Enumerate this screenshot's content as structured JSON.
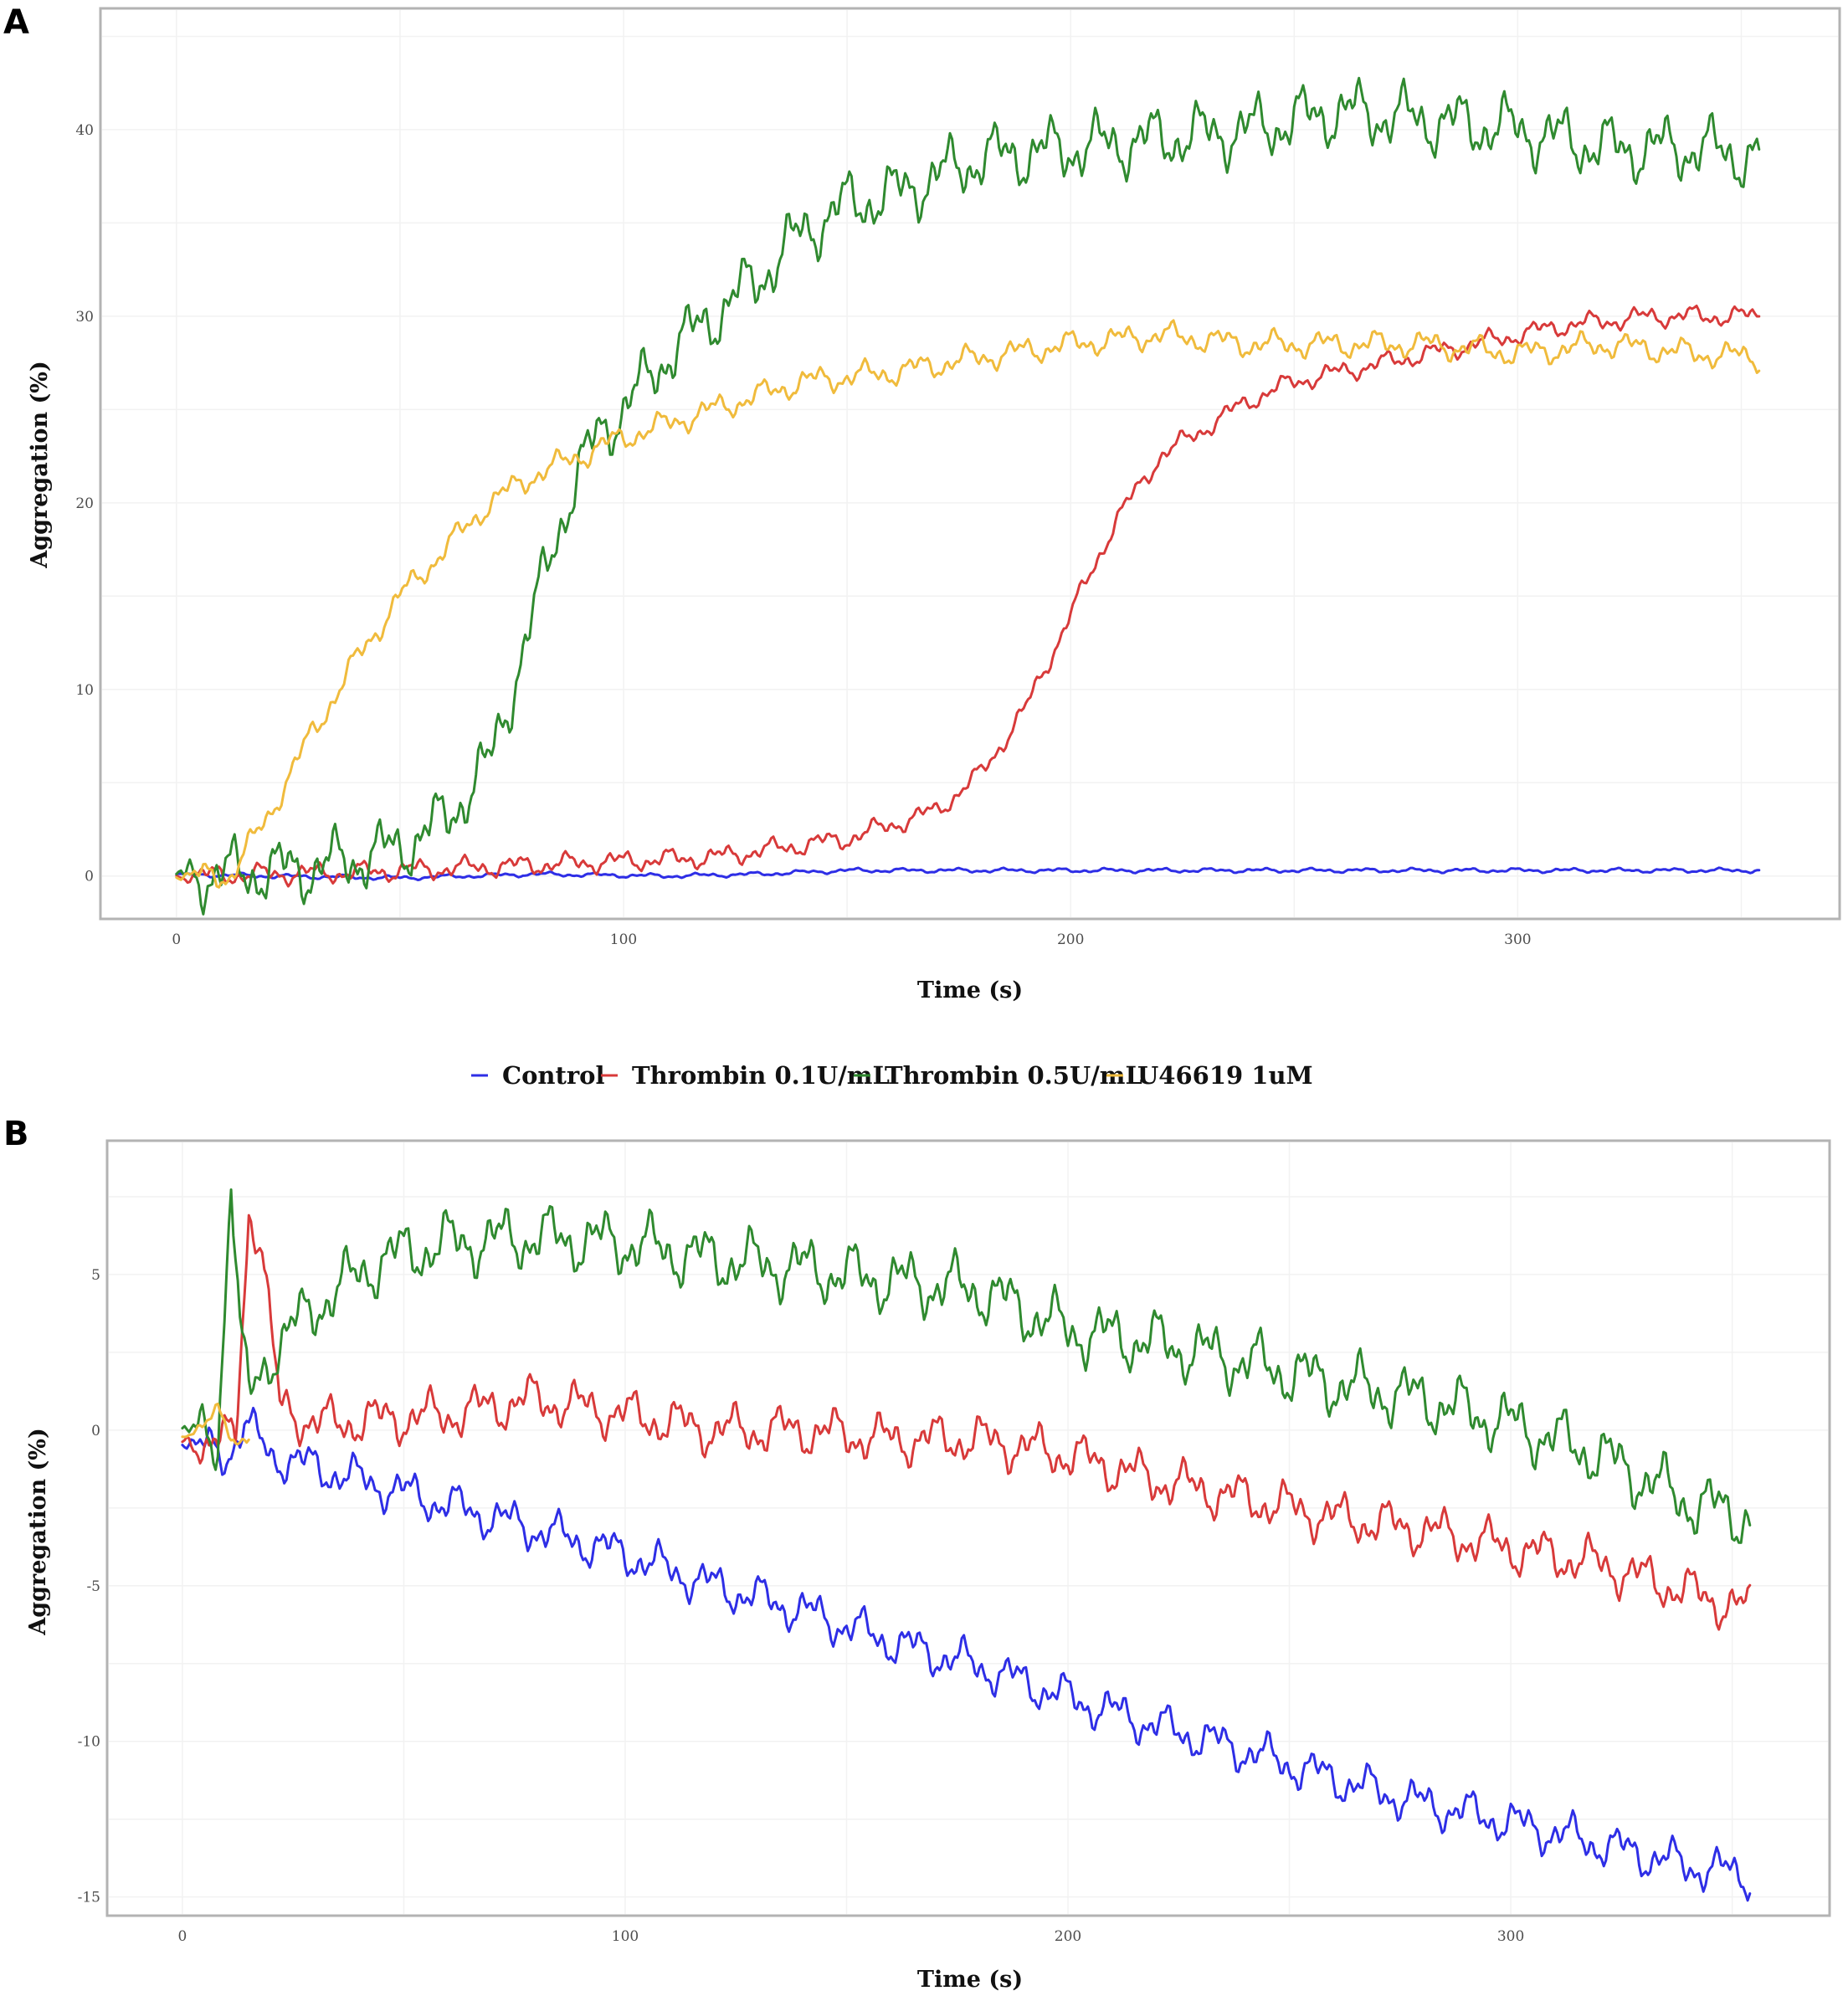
{
  "legend": {
    "entries": [
      {
        "label": "Control",
        "color": "#2e2ee6"
      },
      {
        "label": "Thrombin 0.1U/mL",
        "color": "#d83a3a"
      },
      {
        "label": "Thrombin 0.5U/mL",
        "color": "#2f8a2f"
      },
      {
        "label": "U46619 1uM",
        "color": "#f0bb3c"
      }
    ]
  },
  "chart_data": [
    {
      "panel": "A",
      "type": "line",
      "title": "",
      "xlabel": "Time (s)",
      "ylabel": "Aggregation (%)",
      "xlim": [
        -17,
        372
      ],
      "ylim": [
        -2.3,
        46.5
      ],
      "xticks": [
        0,
        100,
        200,
        300
      ],
      "xtick_labels": [
        "0",
        "100",
        "200",
        "300"
      ],
      "yticks": [
        0,
        10,
        20,
        30,
        40
      ],
      "ytick_labels": [
        "0",
        "10",
        "20",
        "30",
        "40"
      ],
      "grid": true,
      "series": [
        {
          "name": "Control",
          "color": "#2e2ee6",
          "noise": 0.15,
          "x": [
            0,
            20,
            50,
            80,
            110,
            130,
            150,
            200,
            250,
            300,
            354
          ],
          "y": [
            0.1,
            0.0,
            -0.1,
            0.1,
            0.0,
            0.1,
            0.3,
            0.3,
            0.3,
            0.3,
            0.3
          ]
        },
        {
          "name": "Thrombin 0.1U/mL",
          "color": "#d83a3a",
          "noise": 0.7,
          "x": [
            0,
            40,
            80,
            120,
            150,
            170,
            180,
            190,
            200,
            210,
            220,
            230,
            240,
            250,
            270,
            290,
            310,
            330,
            354
          ],
          "y": [
            0.0,
            0.2,
            0.6,
            1.0,
            2.0,
            3.5,
            5.5,
            9.0,
            14.0,
            19.0,
            22.5,
            24.0,
            25.5,
            26.5,
            27.5,
            28.5,
            29.5,
            30.0,
            30.0
          ]
        },
        {
          "name": "Thrombin 0.5U/mL",
          "color": "#2f8a2f",
          "noise": 2.2,
          "x": [
            0,
            30,
            50,
            60,
            70,
            75,
            80,
            85,
            90,
            95,
            100,
            110,
            120,
            130,
            140,
            150,
            160,
            170,
            180,
            200,
            220,
            240,
            260,
            280,
            300,
            320,
            340,
            354
          ],
          "y": [
            0.0,
            0.4,
            1.5,
            3.0,
            6.0,
            10.0,
            14.0,
            18.5,
            21.5,
            24.0,
            25.0,
            28.0,
            30.0,
            32.0,
            34.5,
            36.0,
            36.5,
            37.5,
            38.5,
            39.0,
            39.5,
            40.0,
            41.0,
            40.5,
            40.0,
            39.0,
            39.0,
            38.5
          ]
        },
        {
          "name": "U46619 1uM",
          "color": "#f0bb3c",
          "noise": 0.9,
          "x": [
            0,
            12,
            20,
            30,
            40,
            50,
            60,
            70,
            80,
            90,
            100,
            120,
            140,
            160,
            180,
            200,
            220,
            240,
            260,
            280,
            300,
            320,
            340,
            354
          ],
          "y": [
            0.0,
            0.0,
            3.0,
            7.5,
            11.5,
            15.0,
            17.5,
            20.0,
            21.5,
            22.5,
            23.5,
            25.0,
            26.5,
            27.0,
            27.8,
            28.5,
            29.0,
            28.5,
            28.5,
            28.5,
            28.0,
            28.5,
            28.0,
            27.8
          ]
        }
      ]
    },
    {
      "panel": "B",
      "type": "line",
      "title": "",
      "xlabel": "Time (s)",
      "ylabel": "Aggregation (%)",
      "xlim": [
        -17,
        372
      ],
      "ylim": [
        -15.6,
        9.3
      ],
      "xticks": [
        0,
        100,
        200,
        300
      ],
      "xtick_labels": [
        "0",
        "100",
        "200",
        "300"
      ],
      "yticks": [
        -15,
        -10,
        -5,
        0,
        5
      ],
      "ytick_labels": [
        "-15",
        "-10",
        "-5",
        "0",
        "5"
      ],
      "grid": true,
      "series": [
        {
          "name": "Control",
          "color": "#2e2ee6",
          "noise": 0.9,
          "x": [
            0,
            10,
            14,
            20,
            40,
            60,
            80,
            100,
            120,
            140,
            160,
            180,
            200,
            220,
            240,
            260,
            280,
            300,
            320,
            340,
            354
          ],
          "y": [
            -0.4,
            -0.8,
            0.2,
            -0.8,
            -1.6,
            -2.4,
            -3.2,
            -4.0,
            -5.0,
            -5.8,
            -6.8,
            -7.6,
            -8.6,
            -9.5,
            -10.3,
            -11.2,
            -12.0,
            -12.6,
            -13.3,
            -14.0,
            -14.3
          ]
        },
        {
          "name": "Thrombin 0.1U/mL",
          "color": "#d83a3a",
          "noise": 1.0,
          "x": [
            0,
            12,
            15,
            18,
            20,
            22,
            30,
            60,
            80,
            100,
            120,
            140,
            160,
            180,
            200,
            220,
            240,
            260,
            280,
            300,
            320,
            340,
            354
          ],
          "y": [
            -0.4,
            -0.3,
            7.0,
            6.0,
            3.0,
            0.8,
            0.2,
            0.5,
            1.0,
            0.5,
            0.0,
            0.0,
            -0.3,
            -0.3,
            -0.8,
            -1.6,
            -2.2,
            -2.8,
            -3.2,
            -3.8,
            -4.3,
            -5.2,
            -5.8
          ]
        },
        {
          "name": "Thrombin 0.5U/mL",
          "color": "#2f8a2f",
          "noise": 1.3,
          "x": [
            0,
            8,
            11,
            13,
            15,
            20,
            30,
            45,
            60,
            80,
            100,
            120,
            140,
            160,
            180,
            200,
            220,
            240,
            260,
            280,
            300,
            320,
            340,
            354
          ],
          "y": [
            0.0,
            -0.3,
            8.3,
            3.0,
            1.0,
            2.5,
            4.0,
            5.5,
            6.0,
            6.2,
            6.0,
            5.5,
            5.2,
            4.8,
            4.5,
            3.2,
            2.8,
            2.2,
            1.5,
            1.0,
            0.2,
            -0.8,
            -2.3,
            -2.8
          ]
        },
        {
          "name": "U46619 1uM",
          "color": "#f0bb3c",
          "noise": 0.4,
          "x": [
            0,
            8,
            12,
            15
          ],
          "y": [
            -0.2,
            0.5,
            -0.4,
            0.0
          ]
        }
      ]
    }
  ],
  "panel_labels": [
    "A",
    "B"
  ]
}
